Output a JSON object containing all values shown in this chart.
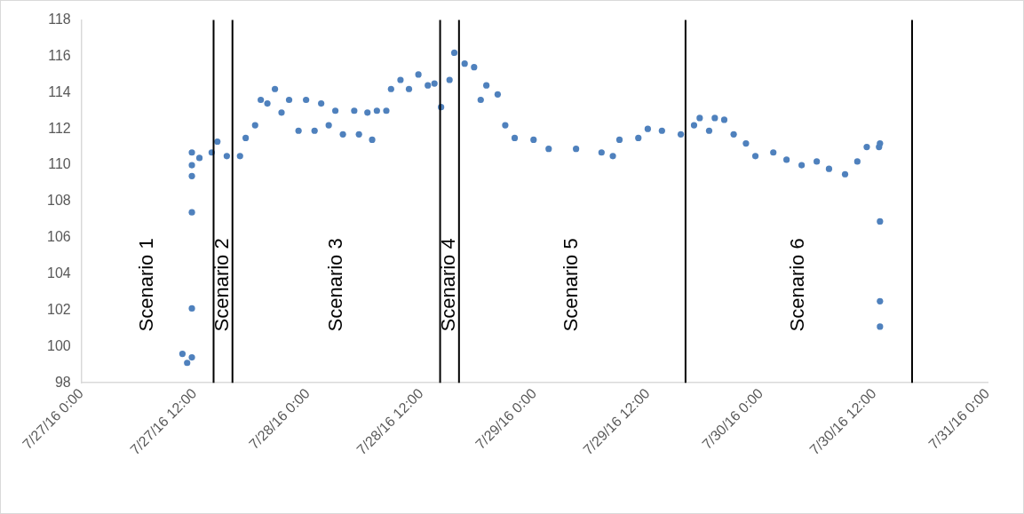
{
  "chart_data": {
    "type": "scatter",
    "marker": "circle",
    "grid": false,
    "xlim": [
      "--07-27T00:00",
      "--07-31T00:00"
    ],
    "xticks": [
      {
        "value": "--07-27T00:00",
        "label": "7/27/16 0:00"
      },
      {
        "value": "--07-27T12:00",
        "label": "7/27/16 12:00"
      },
      {
        "value": "--07-28T00:00",
        "label": "7/28/16 0:00"
      },
      {
        "value": "--07-28T12:00",
        "label": "7/28/16 12:00"
      },
      {
        "value": "--07-29T00:00",
        "label": "7/29/16 0:00"
      },
      {
        "value": "--07-29T12:00",
        "label": "7/29/16 12:00"
      },
      {
        "value": "--07-30T00:00",
        "label": "7/30/16 0:00"
      },
      {
        "value": "--07-30T12:00",
        "label": "7/30/16 12:00"
      },
      {
        "value": "--07-31T00:00",
        "label": "7/31/16 0:00"
      }
    ],
    "ylim": [
      98,
      118
    ],
    "yticks": [
      98,
      100,
      102,
      104,
      106,
      108,
      110,
      112,
      114,
      116,
      118
    ],
    "series": [
      {
        "color": "#4f81bd",
        "x": [
          "--07-27T10:42",
          "--07-27T11:12",
          "--07-27T11:42",
          "--07-27T11:42",
          "--07-27T11:42",
          "--07-27T11:42",
          "--07-27T11:42",
          "--07-27T11:42",
          "--07-27T12:30",
          "--07-27T13:48",
          "--07-27T14:24",
          "--07-27T15:24",
          "--07-27T16:48",
          "--07-27T17:24",
          "--07-27T18:24",
          "--07-27T19:00",
          "--07-27T19:42",
          "--07-27T20:30",
          "--07-27T21:12",
          "--07-27T22:00",
          "--07-27T23:00",
          "--07-27T23:48",
          "--07-28T00:42",
          "--07-28T01:24",
          "--07-28T02:12",
          "--07-28T02:54",
          "--07-28T03:42",
          "--07-28T04:54",
          "--07-28T05:24",
          "--07-28T06:18",
          "--07-28T06:48",
          "--07-28T07:18",
          "--07-28T08:18",
          "--07-28T08:48",
          "--07-28T09:48",
          "--07-28T10:42",
          "--07-28T11:42",
          "--07-28T12:42",
          "--07-28T13:24",
          "--07-28T14:06",
          "--07-28T15:00",
          "--07-28T15:30",
          "--07-28T16:36",
          "--07-28T17:36",
          "--07-28T18:18",
          "--07-28T18:54",
          "--07-28T20:06",
          "--07-28T20:54",
          "--07-28T21:54",
          "--07-28T23:54",
          "--07-29T01:30",
          "--07-29T04:24",
          "--07-29T07:06",
          "--07-29T08:18",
          "--07-29T09:00",
          "--07-29T11:00",
          "--07-29T12:00",
          "--07-29T13:30",
          "--07-29T15:30",
          "--07-29T16:54",
          "--07-29T17:30",
          "--07-29T18:30",
          "--07-29T19:06",
          "--07-29T20:06",
          "--07-29T21:06",
          "--07-29T22:24",
          "--07-29T23:24",
          "--07-30T01:18",
          "--07-30T02:42",
          "--07-30T04:18",
          "--07-30T05:54",
          "--07-30T07:12",
          "--07-30T08:54",
          "--07-30T10:12",
          "--07-30T11:12",
          "--07-30T12:30",
          "--07-30T12:36",
          "--07-30T12:36",
          "--07-30T12:36",
          "--07-30T12:36"
        ],
        "values": [
          99.6,
          99.1,
          99.4,
          102.1,
          107.4,
          109.4,
          110.0,
          110.7,
          110.4,
          110.7,
          111.3,
          110.5,
          110.5,
          111.5,
          112.2,
          113.6,
          113.4,
          114.2,
          112.9,
          113.6,
          111.9,
          113.6,
          111.9,
          113.4,
          112.2,
          113.0,
          111.7,
          113.0,
          111.7,
          112.9,
          111.4,
          113.0,
          113.0,
          114.2,
          114.7,
          114.2,
          115.0,
          114.4,
          114.5,
          113.2,
          114.7,
          116.2,
          115.6,
          115.4,
          113.6,
          114.4,
          113.9,
          112.2,
          111.5,
          111.4,
          110.9,
          110.9,
          110.7,
          110.5,
          111.4,
          111.5,
          112.0,
          111.9,
          111.7,
          112.2,
          112.6,
          111.9,
          112.6,
          112.5,
          111.7,
          111.2,
          110.5,
          110.7,
          110.3,
          110.0,
          110.2,
          109.8,
          109.5,
          110.2,
          111.0,
          111.0,
          111.2,
          106.9,
          102.5,
          101.1
        ]
      }
    ],
    "ref_lines": [
      {
        "axis": "x",
        "value": "--07-27T14:00",
        "color": "#000000"
      },
      {
        "axis": "x",
        "value": "--07-27T16:00",
        "color": "#000000"
      },
      {
        "axis": "x",
        "value": "--07-28T14:00",
        "color": "#000000"
      },
      {
        "axis": "x",
        "value": "--07-28T16:00",
        "color": "#000000"
      },
      {
        "axis": "x",
        "value": "--07-29T16:00",
        "color": "#000000"
      },
      {
        "axis": "x",
        "value": "--07-30T16:00",
        "color": "#000000"
      }
    ],
    "annotations": [
      "Scenario 1",
      "Scenario 2",
      "Scenario 3",
      "Scenario 4",
      "Scenario 5",
      "Scenario 6"
    ]
  }
}
